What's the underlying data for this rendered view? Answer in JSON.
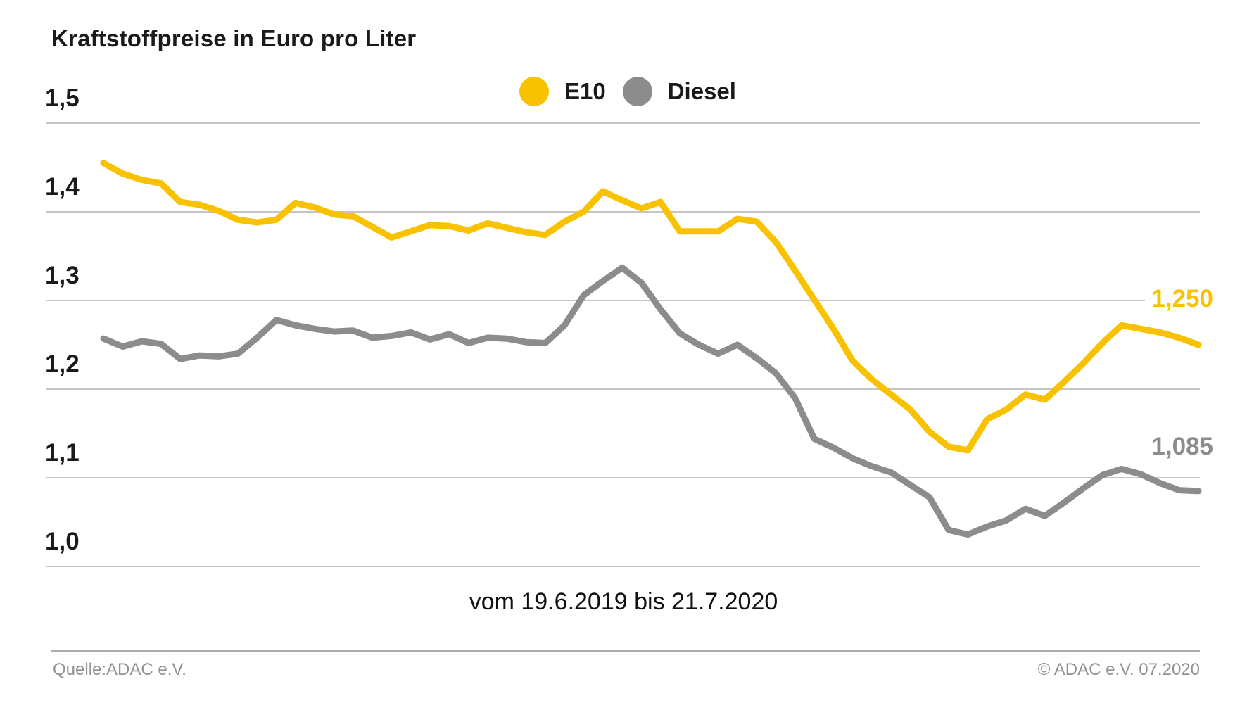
{
  "title": "Kraftstoffpreise in Euro pro Liter",
  "legend": {
    "items": [
      {
        "label": "E10",
        "color": "#F9C200"
      },
      {
        "label": "Diesel",
        "color": "#8C8C8C"
      }
    ]
  },
  "caption": "vom 19.6.2019 bis 21.7.2020",
  "footer": {
    "source": "Quelle:ADAC e.V.",
    "copyright": "© ADAC e.V. 07.2020"
  },
  "colors": {
    "accent_yellow": "#F9C200",
    "accent_gray": "#8C8C8C",
    "gridline": "#c5c5c5",
    "text": "#1a1a1a",
    "footer_text": "#919191"
  },
  "chart_data": {
    "type": "line",
    "title": "Kraftstoffpreise in Euro pro Liter",
    "x_range": {
      "from": "19.6.2019",
      "to": "21.7.2020",
      "interval": "weekly"
    },
    "ylabel": "Euro pro Liter",
    "ylim": [
      0.97,
      1.52
    ],
    "grid": true,
    "legend_position": "top-center",
    "yticks": [
      {
        "value": 1.5,
        "label": "1,5"
      },
      {
        "value": 1.4,
        "label": "1,4"
      },
      {
        "value": 1.3,
        "label": "1,3"
      },
      {
        "value": 1.2,
        "label": "1,2"
      },
      {
        "value": 1.1,
        "label": "1,1"
      },
      {
        "value": 1.0,
        "label": "1,0"
      }
    ],
    "series": [
      {
        "name": "E10",
        "color": "#F9C200",
        "end_label": "1,250",
        "last_value": 1.25,
        "values": [
          1.455,
          1.443,
          1.436,
          1.432,
          1.411,
          1.408,
          1.401,
          1.391,
          1.388,
          1.391,
          1.41,
          1.405,
          1.397,
          1.395,
          1.383,
          1.371,
          1.378,
          1.385,
          1.384,
          1.379,
          1.387,
          1.382,
          1.377,
          1.374,
          1.389,
          1.4,
          1.423,
          1.413,
          1.404,
          1.411,
          1.378,
          1.378,
          1.378,
          1.392,
          1.389,
          1.366,
          1.334,
          1.301,
          1.268,
          1.232,
          1.211,
          1.194,
          1.177,
          1.152,
          1.135,
          1.131,
          1.166,
          1.177,
          1.194,
          1.188,
          1.208,
          1.229,
          1.252,
          1.272,
          1.268,
          1.264,
          1.258,
          1.25
        ]
      },
      {
        "name": "Diesel",
        "color": "#8C8C8C",
        "end_label": "1,085",
        "last_value": 1.085,
        "values": [
          1.257,
          1.248,
          1.254,
          1.251,
          1.234,
          1.238,
          1.237,
          1.24,
          1.258,
          1.278,
          1.272,
          1.268,
          1.265,
          1.266,
          1.258,
          1.26,
          1.264,
          1.256,
          1.262,
          1.252,
          1.258,
          1.257,
          1.253,
          1.252,
          1.272,
          1.306,
          1.322,
          1.337,
          1.32,
          1.29,
          1.263,
          1.25,
          1.24,
          1.25,
          1.235,
          1.218,
          1.19,
          1.144,
          1.134,
          1.122,
          1.113,
          1.106,
          1.092,
          1.078,
          1.041,
          1.036,
          1.045,
          1.052,
          1.065,
          1.057,
          1.072,
          1.088,
          1.103,
          1.11,
          1.104,
          1.094,
          1.086,
          1.085
        ]
      }
    ]
  }
}
